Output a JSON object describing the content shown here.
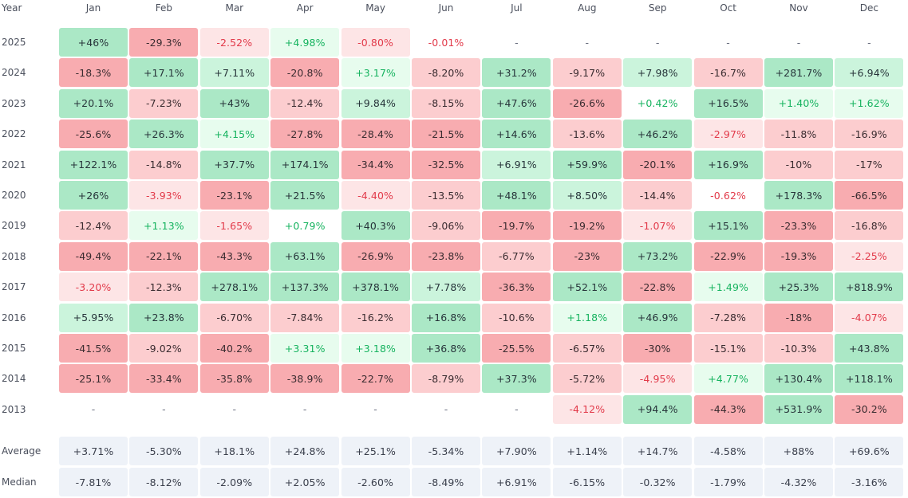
{
  "header": {
    "year_label": "Year"
  },
  "months": [
    "Jan",
    "Feb",
    "Mar",
    "Apr",
    "May",
    "Jun",
    "Jul",
    "Aug",
    "Sep",
    "Oct",
    "Nov",
    "Dec"
  ],
  "rows": [
    {
      "year": "2025",
      "values": [
        "+46%",
        "-29.3%",
        "-2.52%",
        "+4.98%",
        "-0.80%",
        "-0.01%",
        "-",
        "-",
        "-",
        "-",
        "-",
        "-"
      ]
    },
    {
      "year": "2024",
      "values": [
        "-18.3%",
        "+17.1%",
        "+7.11%",
        "-20.8%",
        "+3.17%",
        "-8.20%",
        "+31.2%",
        "-9.17%",
        "+7.98%",
        "-16.7%",
        "+281.7%",
        "+6.94%"
      ]
    },
    {
      "year": "2023",
      "values": [
        "+20.1%",
        "-7.23%",
        "+43%",
        "-12.4%",
        "+9.84%",
        "-8.15%",
        "+47.6%",
        "-26.6%",
        "+0.42%",
        "+16.5%",
        "+1.40%",
        "+1.62%"
      ]
    },
    {
      "year": "2022",
      "values": [
        "-25.6%",
        "+26.3%",
        "+4.15%",
        "-27.8%",
        "-28.4%",
        "-21.5%",
        "+14.6%",
        "-13.6%",
        "+46.2%",
        "-2.97%",
        "-11.8%",
        "-16.9%"
      ]
    },
    {
      "year": "2021",
      "values": [
        "+122.1%",
        "-14.8%",
        "+37.7%",
        "+174.1%",
        "-34.4%",
        "-32.5%",
        "+6.91%",
        "+59.9%",
        "-20.1%",
        "+16.9%",
        "-10%",
        "-17%"
      ]
    },
    {
      "year": "2020",
      "values": [
        "+26%",
        "-3.93%",
        "-23.1%",
        "+21.5%",
        "-4.40%",
        "-13.5%",
        "+48.1%",
        "+8.50%",
        "-14.4%",
        "-0.62%",
        "+178.3%",
        "-66.5%"
      ]
    },
    {
      "year": "2019",
      "values": [
        "-12.4%",
        "+1.13%",
        "-1.65%",
        "+0.79%",
        "+40.3%",
        "-9.06%",
        "-19.7%",
        "-19.2%",
        "-1.07%",
        "+15.1%",
        "-23.3%",
        "-16.8%"
      ]
    },
    {
      "year": "2018",
      "values": [
        "-49.4%",
        "-22.1%",
        "-43.3%",
        "+63.1%",
        "-26.9%",
        "-23.8%",
        "-6.77%",
        "-23%",
        "+73.2%",
        "-22.9%",
        "-19.3%",
        "-2.25%"
      ]
    },
    {
      "year": "2017",
      "values": [
        "-3.20%",
        "-12.3%",
        "+278.1%",
        "+137.3%",
        "+378.1%",
        "+7.78%",
        "-36.3%",
        "+52.1%",
        "-22.8%",
        "+1.49%",
        "+25.3%",
        "+818.9%"
      ]
    },
    {
      "year": "2016",
      "values": [
        "+5.95%",
        "+23.8%",
        "-6.70%",
        "-7.84%",
        "-16.2%",
        "+16.8%",
        "-10.6%",
        "+1.18%",
        "+46.9%",
        "-7.28%",
        "-18%",
        "-4.07%"
      ]
    },
    {
      "year": "2015",
      "values": [
        "-41.5%",
        "-9.02%",
        "-40.2%",
        "+3.31%",
        "+3.18%",
        "+36.8%",
        "-25.5%",
        "-6.57%",
        "-30%",
        "-15.1%",
        "-10.3%",
        "+43.8%"
      ]
    },
    {
      "year": "2014",
      "values": [
        "-25.1%",
        "-33.4%",
        "-35.8%",
        "-38.9%",
        "-22.7%",
        "-8.79%",
        "+37.3%",
        "-5.72%",
        "-4.95%",
        "+4.77%",
        "+130.4%",
        "+118.1%"
      ]
    },
    {
      "year": "2013",
      "values": [
        "-",
        "-",
        "-",
        "-",
        "-",
        "-",
        "-",
        "-4.12%",
        "+94.4%",
        "-44.3%",
        "+531.9%",
        "-30.2%"
      ]
    }
  ],
  "summary": [
    {
      "label": "Average",
      "values": [
        "+3.71%",
        "-5.30%",
        "+18.1%",
        "+24.8%",
        "+25.1%",
        "-5.34%",
        "+7.90%",
        "+1.14%",
        "+14.7%",
        "-4.58%",
        "+88%",
        "+69.6%"
      ]
    },
    {
      "label": "Median",
      "values": [
        "-7.81%",
        "-8.12%",
        "-2.09%",
        "+2.05%",
        "-2.60%",
        "-8.49%",
        "+6.91%",
        "-6.15%",
        "-0.32%",
        "-1.79%",
        "-4.32%",
        "-3.16%"
      ]
    }
  ],
  "colors": {
    "positive_strong": "#abe8c6",
    "positive_medium": "#cbf4dc",
    "positive_light": "#e7fcee",
    "negative_strong": "#f8acb0",
    "negative_medium": "#fccdcf",
    "negative_light": "#fde5e6",
    "positive_text": "#16b35f",
    "negative_text": "#e23a4a",
    "summary_bg": "#eef2f8"
  }
}
